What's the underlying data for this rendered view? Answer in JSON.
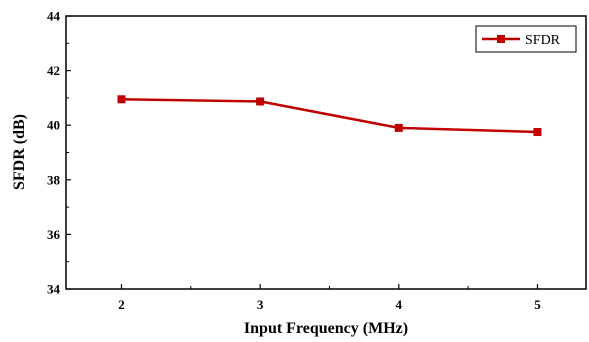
{
  "chart_data": {
    "type": "line",
    "title": "",
    "xlabel": "Input Frequency (MHz)",
    "ylabel": "SFDR (dB)",
    "x": [
      2,
      3,
      4,
      5
    ],
    "xticks": [
      "2",
      "3",
      "4",
      "5"
    ],
    "xlim": [
      1.6,
      5.35
    ],
    "ylim": [
      34,
      44
    ],
    "yticks": [
      "34",
      "36",
      "38",
      "40",
      "42",
      "44"
    ],
    "grid": false,
    "legend_position": "top-right",
    "series": [
      {
        "name": "SFDR",
        "color": "#c00000",
        "marker": "square",
        "values": [
          40.95,
          40.87,
          39.9,
          39.75
        ]
      }
    ]
  }
}
